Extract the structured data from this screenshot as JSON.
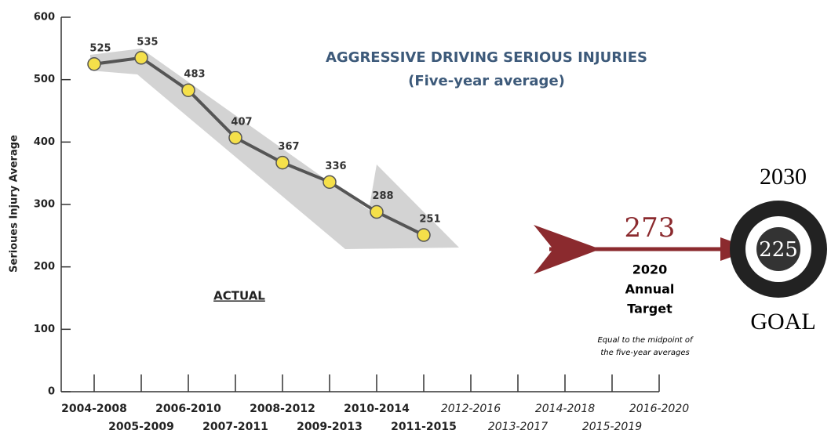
{
  "chart_data": {
    "type": "line",
    "title": "AGGRESSIVE DRIVING SERIOUS INJURIES",
    "subtitle": "(Five-year average)",
    "y_label": "Serioues Injury Average",
    "series_label": "ACTUAL",
    "categories": [
      "2004-2008",
      "2005-2009",
      "2006-2010",
      "2007-2011",
      "2008-2012",
      "2009-2013",
      "2010-2014",
      "2011-2015",
      "2012-2016",
      "2013-2017",
      "2014-2018",
      "2015-2019",
      "2016-2020"
    ],
    "values": [
      525,
      535,
      483,
      407,
      367,
      336,
      288,
      251,
      null,
      null,
      null,
      null,
      null
    ],
    "color": "#555555",
    "marker_color": "#f5e04a",
    "ylim": [
      0,
      600
    ],
    "yticks": [
      0,
      100,
      200,
      300,
      400,
      500,
      600
    ],
    "target": {
      "value": 273,
      "year": "2020",
      "label_line1": "Annual",
      "label_line2": "Target",
      "note_line1": "Equal to the midpoint of",
      "note_line2": "the five-year averages",
      "color": "#8b2a2e"
    },
    "goal": {
      "value": 225,
      "year": "2030",
      "label": "GOAL"
    }
  }
}
